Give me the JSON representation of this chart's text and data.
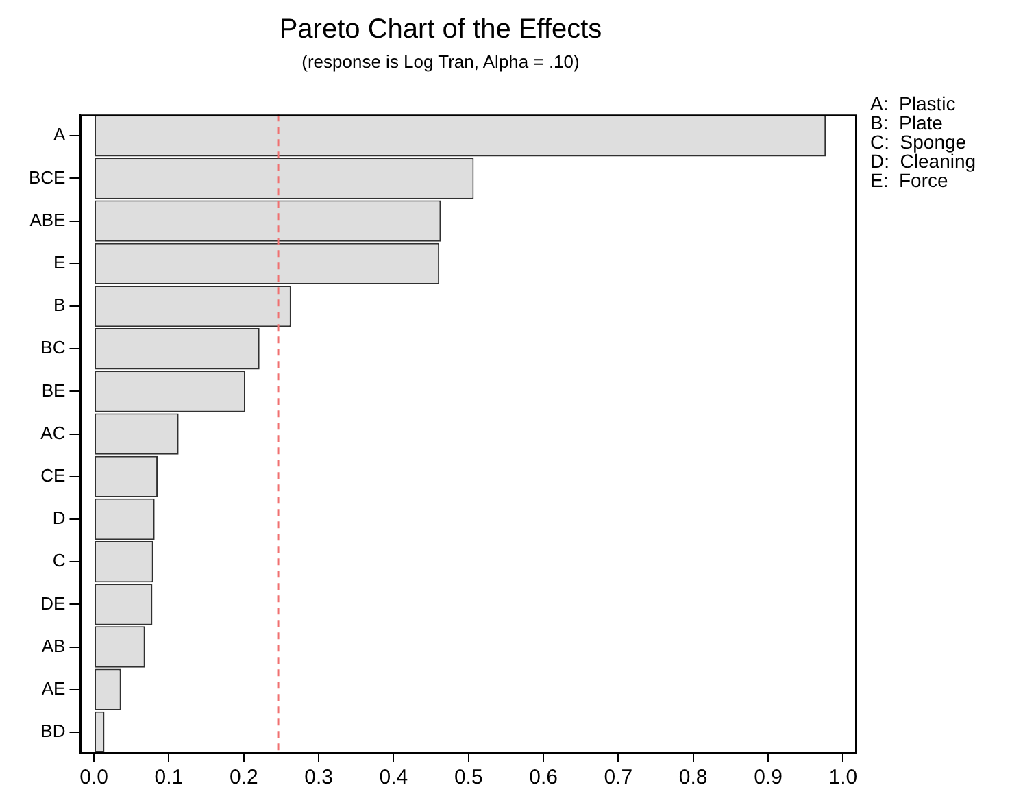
{
  "chart_data": {
    "type": "bar",
    "orientation": "horizontal",
    "title": "Pareto Chart of the Effects",
    "subtitle": "(response is Log Tran, Alpha = .10)",
    "categories": [
      "A",
      "BCE",
      "ABE",
      "E",
      "B",
      "BC",
      "BE",
      "AC",
      "CE",
      "D",
      "C",
      "DE",
      "AB",
      "AE",
      "BD"
    ],
    "values": [
      0.977,
      0.507,
      0.463,
      0.461,
      0.263,
      0.221,
      0.202,
      0.113,
      0.085,
      0.081,
      0.079,
      0.078,
      0.068,
      0.036,
      0.014
    ],
    "color": "#dedede",
    "xlim": [
      -0.018,
      1.018
    ],
    "xticks": [
      {
        "value": 0,
        "label": "0.0"
      },
      0.1,
      0.2,
      0.3,
      0.4,
      0.5,
      0.6,
      0.7,
      0.8,
      0.9,
      {
        "value": 1,
        "label": "1.0"
      }
    ],
    "ref_lines": [
      {
        "axis": "x",
        "value": 0.246,
        "label": null,
        "color": "#f07070",
        "line_style": "dashed"
      }
    ],
    "annotations": [
      "A:  Plastic",
      "B:  Plate",
      "C:  Sponge",
      "D:  Cleaning",
      "E:  Force"
    ],
    "grid": false,
    "legend": false
  }
}
